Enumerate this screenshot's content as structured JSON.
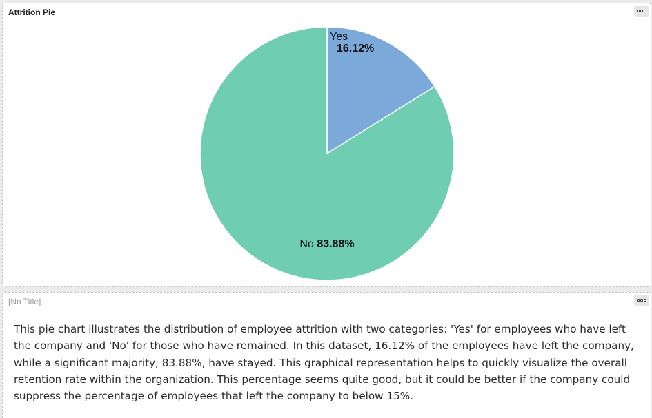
{
  "chart_panel": {
    "title": "Attrition Pie"
  },
  "text_panel": {
    "title": "[No Title]",
    "description": "This pie chart illustrates the distribution of employee attrition with two categories: 'Yes' for employees who have left the company and 'No' for those who have remained. In this dataset, 16.12% of the employees have left the company, while a significant majority, 83.88%, have stayed. This graphical representation helps to quickly visualize the overall retention rate within the organization. This percentage seems quite good, but it could be better if the company could suppress the percentage of employees that left the company to below 15%."
  },
  "icons": {
    "menu": "more-options-icon",
    "resize": "resize-handle-icon"
  },
  "chart_data": {
    "type": "pie",
    "title": "Attrition Pie",
    "categories": [
      "Yes",
      "No"
    ],
    "values": [
      16.12,
      83.88
    ],
    "labels": [
      "16.12%",
      "83.88%"
    ],
    "colors": [
      "#7aa9da",
      "#6fcdb2"
    ],
    "start_angle_deg": 0,
    "direction": "clockwise",
    "slice_border_color": "#ffffff",
    "legend": "none"
  }
}
